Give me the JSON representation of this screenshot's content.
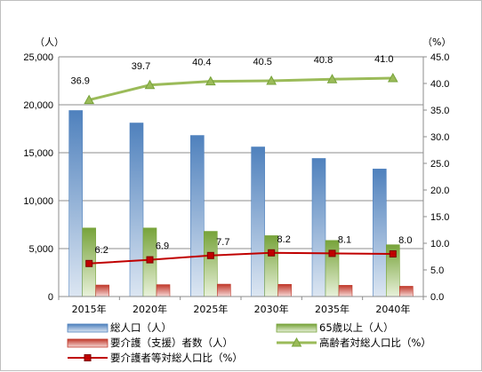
{
  "chart_data": {
    "type": "bar",
    "categories": [
      "2015年",
      "2020年",
      "2025年",
      "2030年",
      "2035年",
      "2040年"
    ],
    "y_left": {
      "unit_label": "（人）",
      "ylim": [
        0,
        25000
      ],
      "ticks": [
        "0",
        "5,000",
        "10,000",
        "15,000",
        "20,000",
        "25,000"
      ]
    },
    "y_right": {
      "unit_label": "（%）",
      "ylim": [
        0,
        45
      ],
      "ticks": [
        "0.0",
        "5.0",
        "10.0",
        "15.0",
        "20.0",
        "25.0",
        "30.0",
        "35.0",
        "40.0",
        "45.0"
      ]
    },
    "grid": true,
    "legend_position": "bottom",
    "series": [
      {
        "name": "総人口（人）",
        "type": "bar",
        "axis": "left",
        "color": "#4f81bd",
        "values": [
          19400,
          18100,
          16800,
          15600,
          14400,
          13300
        ]
      },
      {
        "name": "65歳以上（人）",
        "type": "bar",
        "axis": "left",
        "color": "#9bbb59",
        "values": [
          7150,
          7150,
          6800,
          6350,
          5850,
          5400
        ]
      },
      {
        "name": "要介護（支援）者数（人）",
        "type": "bar",
        "axis": "left",
        "color": "#c0504d",
        "values": [
          1200,
          1240,
          1290,
          1270,
          1170,
          1070
        ]
      },
      {
        "name": "高齢者対総人口比（%）",
        "type": "line",
        "axis": "right",
        "color": "#9bbb59",
        "marker": "triangle",
        "values": [
          36.9,
          39.7,
          40.4,
          40.5,
          40.8,
          41.0
        ],
        "labels": [
          "36.9",
          "39.7",
          "40.4",
          "40.5",
          "40.8",
          "41.0"
        ]
      },
      {
        "name": "要介護者等対総人口比（%）",
        "type": "line",
        "axis": "right",
        "color": "#c00000",
        "marker": "square",
        "values": [
          6.2,
          6.9,
          7.7,
          8.2,
          8.1,
          8.0
        ],
        "labels": [
          "6.2",
          "6.9",
          "7.7",
          "8.2",
          "8.1",
          "8.0"
        ]
      }
    ]
  }
}
